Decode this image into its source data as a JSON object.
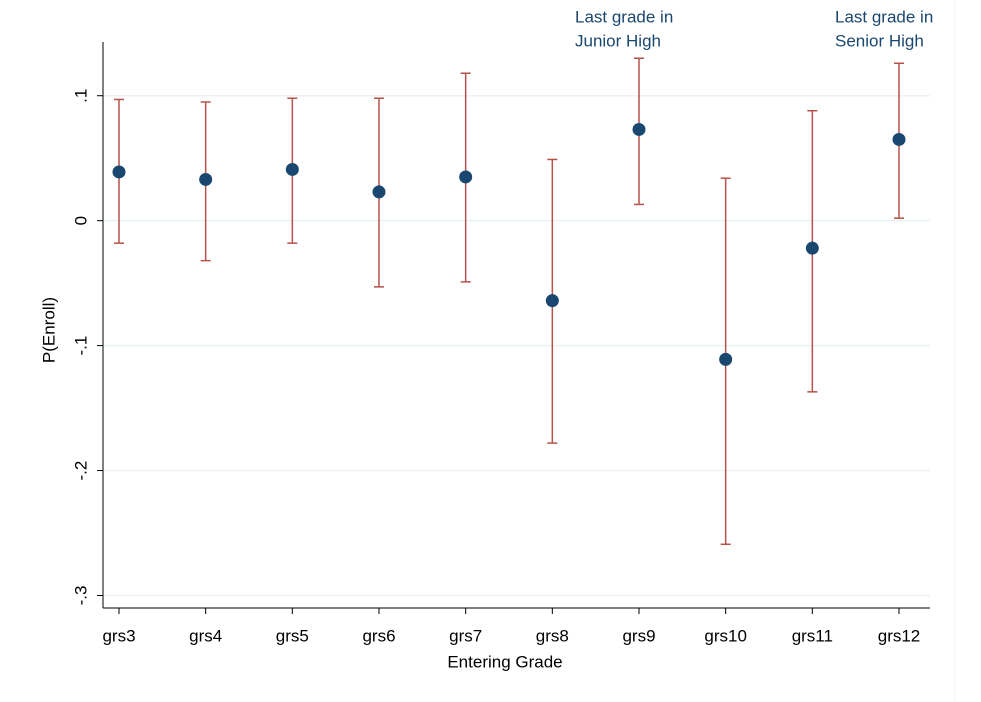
{
  "chart_data": {
    "type": "errorbar",
    "x_label": "Entering Grade",
    "y_label": "P(Enroll)",
    "categories": [
      "grs3",
      "grs4",
      "grs5",
      "grs6",
      "grs7",
      "grs8",
      "grs9",
      "grs10",
      "grs11",
      "grs12"
    ],
    "series": [
      {
        "color": "#1a476f",
        "error_color": "#b5524a",
        "values": [
          0.039,
          0.033,
          0.041,
          0.023,
          0.035,
          -0.064,
          0.073,
          -0.111,
          -0.022,
          0.065
        ],
        "lower": [
          -0.018,
          -0.032,
          -0.018,
          -0.053,
          -0.049,
          -0.178,
          0.013,
          -0.259,
          -0.137,
          0.002
        ],
        "upper": [
          0.097,
          0.095,
          0.098,
          0.098,
          0.118,
          0.049,
          0.13,
          0.034,
          0.088,
          0.126
        ]
      }
    ],
    "ylim": [
      -0.31,
      0.143
    ],
    "yticks": [
      {
        "value": -0.3,
        "label": "-.3"
      },
      {
        "value": -0.2,
        "label": "-.2"
      },
      {
        "value": -0.1,
        "label": "-.1"
      },
      0,
      {
        "value": 0.1,
        "label": ".1"
      }
    ],
    "grid": true,
    "annotations": [
      {
        "category": "grs9",
        "lines": [
          "Last grade in",
          "Junior High"
        ]
      },
      {
        "category": "grs12",
        "lines": [
          "Last grade in",
          "Senior High"
        ]
      }
    ]
  }
}
